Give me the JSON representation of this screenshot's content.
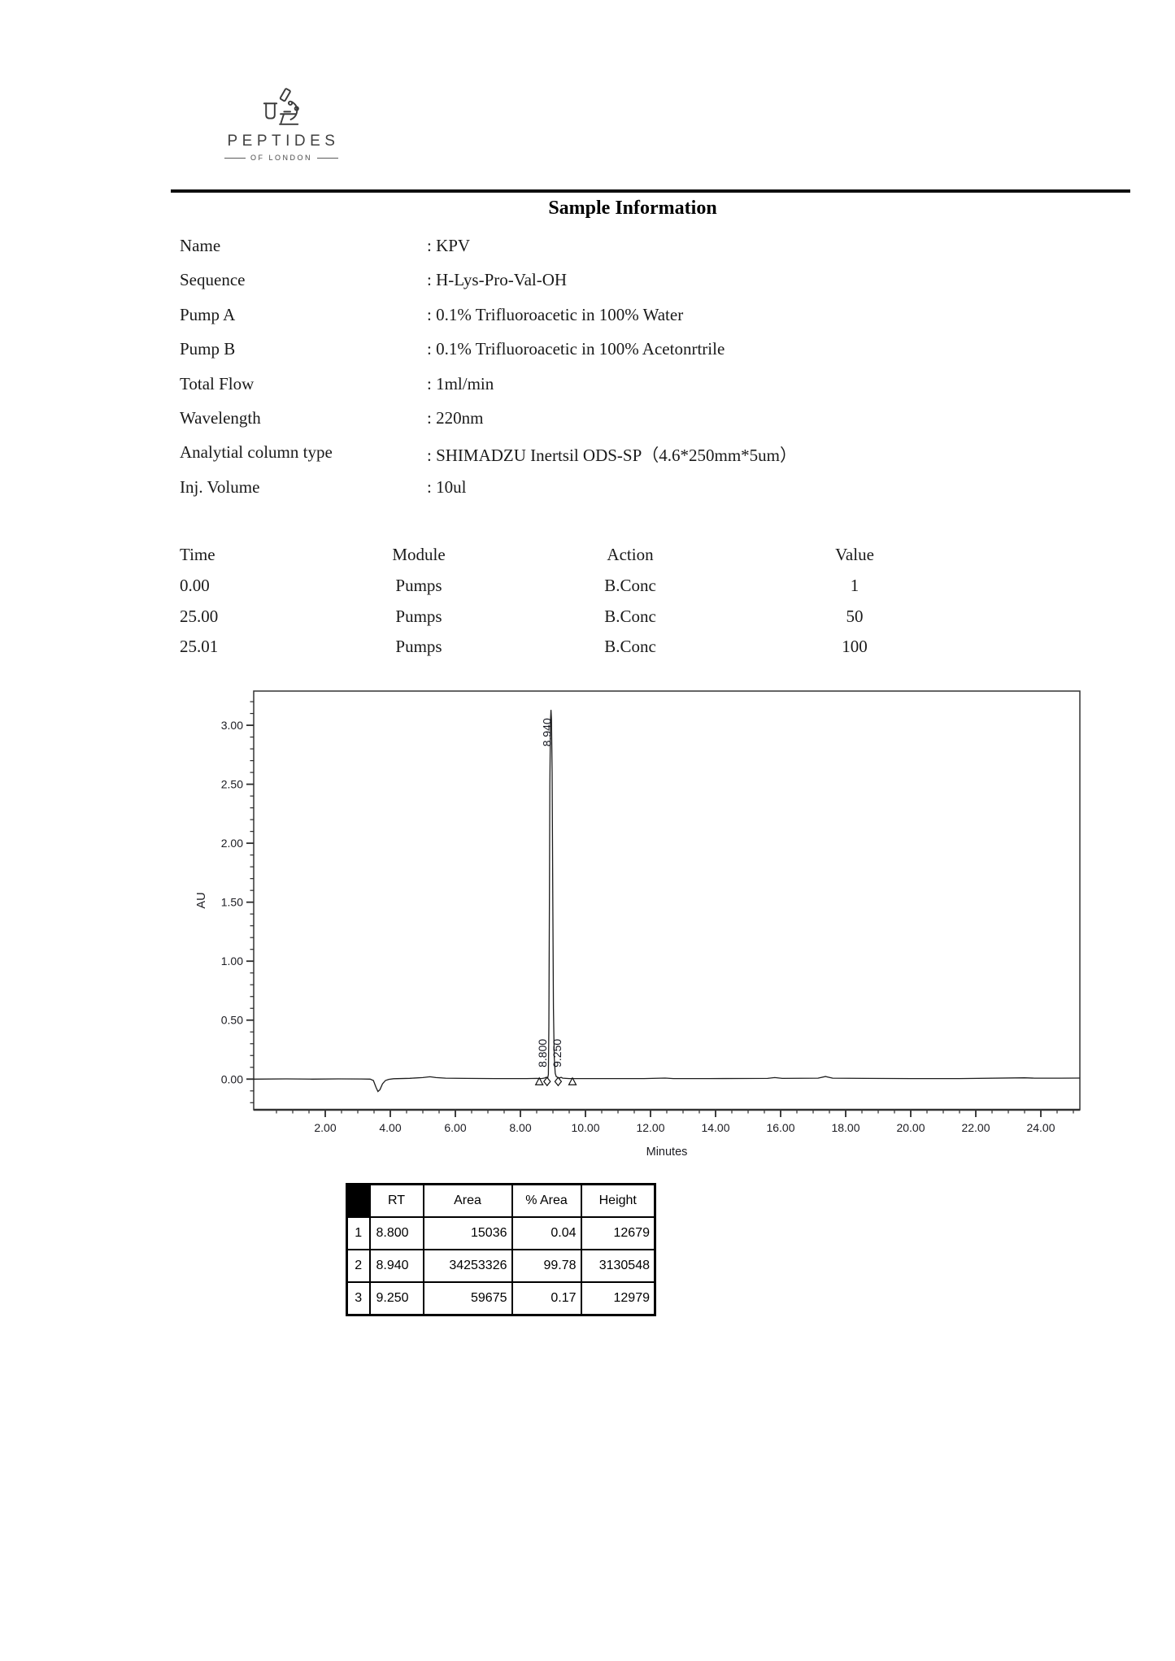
{
  "logo": {
    "brand": "PEPTIDES",
    "tagline": "OF LONDON"
  },
  "sample_information": {
    "title": "Sample Information",
    "fields": [
      {
        "label": "Name",
        "value": "KPV"
      },
      {
        "label": "Sequence",
        "value": "H-Lys-Pro-Val-OH"
      },
      {
        "label": "Pump A",
        "value": "0.1% Trifluoroacetic in 100% Water"
      },
      {
        "label": "Pump B",
        "value": "0.1% Trifluoroacetic in 100% Acetonrtrile"
      },
      {
        "label": "Total Flow",
        "value": "1ml/min"
      },
      {
        "label": "Wavelength",
        "value": "220nm"
      },
      {
        "label": "Analytial column type",
        "value": "SHIMADZU Inertsil ODS-SP（4.6*250mm*5um）"
      },
      {
        "label": "Inj. Volume",
        "value": "10ul"
      }
    ]
  },
  "program_table": {
    "headers": [
      "Time",
      "Module",
      "Action",
      "Value"
    ],
    "rows": [
      [
        "0.00",
        "Pumps",
        "B.Conc",
        "1"
      ],
      [
        "25.00",
        "Pumps",
        "B.Conc",
        "50"
      ],
      [
        "25.01",
        "Pumps",
        "B.Conc",
        "100"
      ]
    ]
  },
  "chart_data": {
    "type": "line",
    "title": "",
    "xlabel": "Minutes",
    "ylabel": "AU",
    "xlim": [
      -0.2,
      25.2
    ],
    "ylim": [
      -0.26,
      3.29
    ],
    "grid": false,
    "x_ticks": [
      {
        "value": 2,
        "label": "2.00"
      },
      {
        "value": 4,
        "label": "4.00"
      },
      {
        "value": 6,
        "label": "6.00"
      },
      {
        "value": 8,
        "label": "8.00"
      },
      {
        "value": 10,
        "label": "10.00"
      },
      {
        "value": 12,
        "label": "12.00"
      },
      {
        "value": 14,
        "label": "14.00"
      },
      {
        "value": 16,
        "label": "16.00"
      },
      {
        "value": 18,
        "label": "18.00"
      },
      {
        "value": 20,
        "label": "20.00"
      },
      {
        "value": 22,
        "label": "22.00"
      },
      {
        "value": 24,
        "label": "24.00"
      }
    ],
    "x_minor_step": 0.5,
    "y_ticks": [
      {
        "value": 0.0,
        "label": "0.00"
      },
      {
        "value": 0.5,
        "label": "0.50"
      },
      {
        "value": 1.0,
        "label": "1.00"
      },
      {
        "value": 1.5,
        "label": "1.50"
      },
      {
        "value": 2.0,
        "label": "2.00"
      },
      {
        "value": 2.5,
        "label": "2.50"
      },
      {
        "value": 3.0,
        "label": "3.00"
      }
    ],
    "y_minor_step": 0.1,
    "peak_labels": [
      {
        "text": "8.800",
        "t": 8.8,
        "y_au": 0.22
      },
      {
        "text": "8.940",
        "t": 8.94,
        "y_au": 2.94
      },
      {
        "text": "9.250",
        "t": 9.25,
        "y_au": 0.22
      }
    ],
    "baseline_markers": [
      {
        "t": 8.58,
        "shape": "triangle"
      },
      {
        "t": 8.82,
        "shape": "diamond"
      },
      {
        "t": 9.16,
        "shape": "diamond"
      },
      {
        "t": 9.6,
        "shape": "triangle"
      }
    ],
    "trace": [
      [
        -0.2,
        0
      ],
      [
        0.8,
        0.002
      ],
      [
        1.6,
        0
      ],
      [
        2.4,
        0.002
      ],
      [
        3.1,
        0.001
      ],
      [
        3.38,
        0
      ],
      [
        3.48,
        -0.012
      ],
      [
        3.56,
        -0.07
      ],
      [
        3.62,
        -0.105
      ],
      [
        3.68,
        -0.09
      ],
      [
        3.76,
        -0.04
      ],
      [
        3.85,
        -0.012
      ],
      [
        3.95,
        -0.002
      ],
      [
        4.1,
        0.003
      ],
      [
        4.6,
        0.007
      ],
      [
        5.0,
        0.013
      ],
      [
        5.22,
        0.02
      ],
      [
        5.4,
        0.013
      ],
      [
        5.7,
        0.008
      ],
      [
        6.3,
        0.006
      ],
      [
        7.2,
        0.005
      ],
      [
        8.2,
        0.005
      ],
      [
        8.5,
        0.006
      ],
      [
        8.65,
        0.005
      ],
      [
        8.74,
        0.009
      ],
      [
        8.8,
        0.016
      ],
      [
        8.84,
        0.011
      ],
      [
        8.86,
        0.04
      ],
      [
        8.875,
        0.45
      ],
      [
        8.89,
        1.4
      ],
      [
        8.905,
        2.5
      ],
      [
        8.925,
        3.04
      ],
      [
        8.94,
        3.13
      ],
      [
        8.955,
        3.05
      ],
      [
        8.975,
        2.6
      ],
      [
        8.995,
        1.55
      ],
      [
        9.015,
        0.6
      ],
      [
        9.04,
        0.18
      ],
      [
        9.07,
        0.05
      ],
      [
        9.1,
        0.022
      ],
      [
        9.16,
        0.012
      ],
      [
        9.21,
        0.01
      ],
      [
        9.25,
        0.015
      ],
      [
        9.3,
        0.008
      ],
      [
        9.5,
        0.005
      ],
      [
        10.5,
        0.005
      ],
      [
        11.8,
        0.005
      ],
      [
        12.45,
        0.009
      ],
      [
        12.7,
        0.005
      ],
      [
        13.8,
        0.005
      ],
      [
        15.6,
        0.006
      ],
      [
        15.82,
        0.013
      ],
      [
        16.05,
        0.006
      ],
      [
        17.15,
        0.008
      ],
      [
        17.38,
        0.022
      ],
      [
        17.6,
        0.008
      ],
      [
        18.6,
        0.006
      ],
      [
        20,
        0.005
      ],
      [
        21.5,
        0.005
      ],
      [
        23.5,
        0.011
      ],
      [
        23.8,
        0.008
      ],
      [
        24.6,
        0.008
      ],
      [
        25.2,
        0.009
      ]
    ]
  },
  "peak_table": {
    "headers": [
      "",
      "RT",
      "Area",
      "% Area",
      "Height"
    ],
    "rows": [
      [
        "1",
        "8.800",
        "15036",
        "0.04",
        "12679"
      ],
      [
        "2",
        "8.940",
        "34253326",
        "99.78",
        "3130548"
      ],
      [
        "3",
        "9.250",
        "59675",
        "0.17",
        "12979"
      ]
    ]
  }
}
